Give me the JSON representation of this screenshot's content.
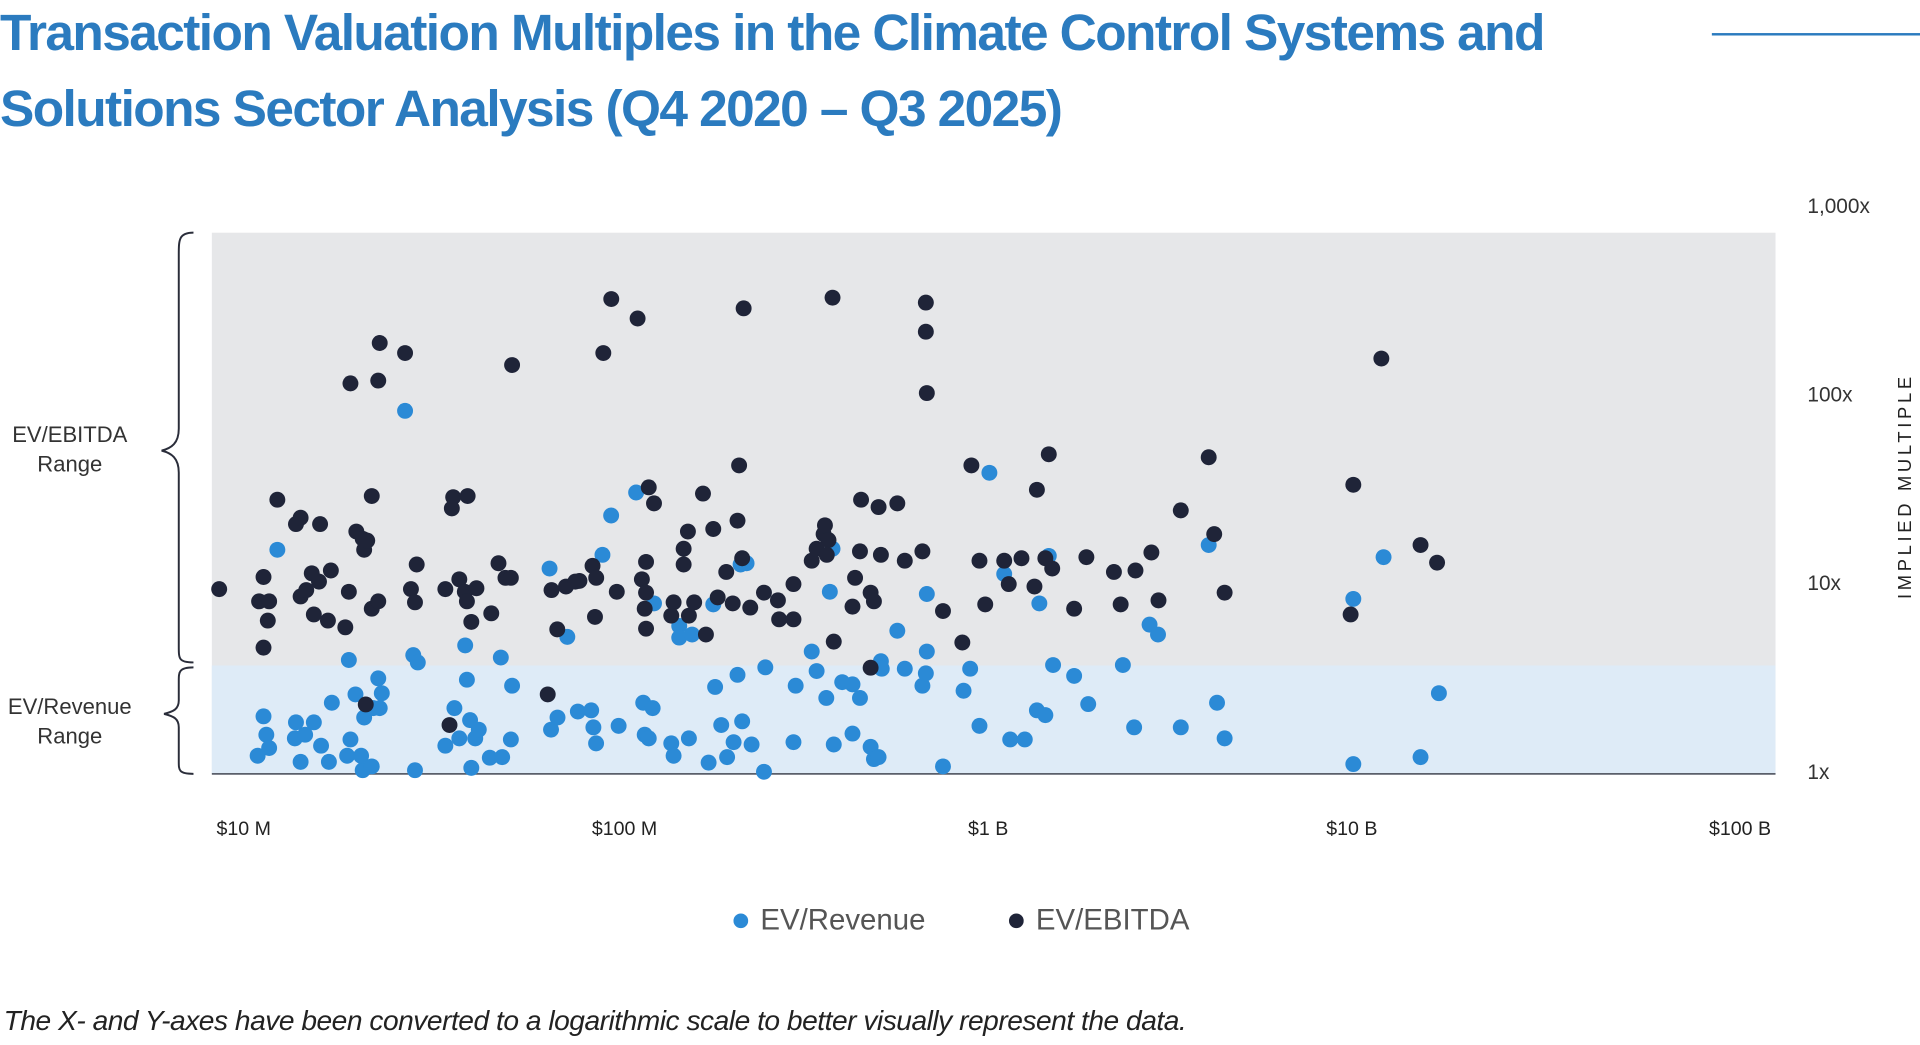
{
  "title": "Transaction Valuation Multiples in the Climate Control Systems and Solutions Sector Analysis (Q4 2020 – Q3 2025)",
  "footnote": "The X- and Y-axes have been converted to a logarithmic scale to better visually represent the data.",
  "range_labels": {
    "ebitda": [
      "EV/EBITDA",
      "Range"
    ],
    "revenue": [
      "EV/Revenue",
      "Range"
    ]
  },
  "colors": {
    "title": "#2b7bbf",
    "ev_revenue": "#2b8ad6",
    "ev_ebitda": "#1f2438",
    "plot_bg": "#e6e7e9",
    "revenue_band": "#deebf7"
  },
  "chart_data": {
    "type": "scatter",
    "title": "Transaction Valuation Multiples in the Climate Control Systems and Solutions Sector Analysis (Q4 2020 – Q3 2025)",
    "xlabel": "",
    "ylabel": "IMPLIED MULTIPLE",
    "x_scale": "log",
    "y_scale": "log",
    "x_unit": "$ M",
    "x_ticks": [
      10,
      100,
      1000,
      10000,
      100000
    ],
    "x_tick_labels": [
      "$10 M",
      "$100 M",
      "$1 B",
      "$10 B",
      "$100 B"
    ],
    "y_ticks": [
      1,
      10,
      100,
      1000
    ],
    "y_tick_labels": [
      "1x",
      "10x",
      "100x",
      "1,000x"
    ],
    "ylim": [
      1,
      730
    ],
    "y_axis_side": "right",
    "grid": false,
    "legend": "bottom-center",
    "bands": [
      {
        "label": "EV/EBITDA Range",
        "from": 3.7,
        "to": 730
      },
      {
        "label": "EV/Revenue Range",
        "from": 1,
        "to": 3.7
      }
    ],
    "series": [
      {
        "name": "EV/Revenue",
        "color": "#2b8ad6",
        "points": [
          [
            12.3,
            15.2
          ],
          [
            27,
            83
          ],
          [
            11.3,
            1.99
          ],
          [
            11.5,
            1.59
          ],
          [
            11.7,
            1.35
          ],
          [
            10.9,
            1.23
          ],
          [
            14.2,
            1.14
          ],
          [
            13.8,
            1.85
          ],
          [
            13.7,
            1.52
          ],
          [
            14.6,
            1.59
          ],
          [
            15.4,
            1.85
          ],
          [
            16.1,
            1.39
          ],
          [
            16.9,
            1.14
          ],
          [
            17.2,
            2.35
          ],
          [
            19.1,
            3.96
          ],
          [
            19.3,
            1.5
          ],
          [
            18.9,
            1.23
          ],
          [
            19.9,
            2.6
          ],
          [
            21,
            1.96
          ],
          [
            20.8,
            1.03
          ],
          [
            20.6,
            1.23
          ],
          [
            22,
            1.08
          ],
          [
            22.2,
            2.2
          ],
          [
            22.9,
            3.16
          ],
          [
            23.4,
            2.64
          ],
          [
            23.1,
            2.2
          ],
          [
            28.4,
            4.2
          ],
          [
            29.2,
            3.84
          ],
          [
            28.7,
            1.03
          ],
          [
            34.6,
            1.39
          ],
          [
            36.6,
            2.2
          ],
          [
            37.7,
            1.52
          ],
          [
            39.5,
            3.11
          ],
          [
            39.1,
            4.73
          ],
          [
            40.3,
            1.9
          ],
          [
            40.6,
            1.06
          ],
          [
            41.6,
            1.52
          ],
          [
            42.5,
            1.69
          ],
          [
            45.5,
            1.2
          ],
          [
            49.1,
            1.21
          ],
          [
            48.7,
            4.08
          ],
          [
            51.8,
            1.5
          ],
          [
            52.2,
            2.89
          ],
          [
            66.3,
            1.69
          ],
          [
            69,
            1.96
          ],
          [
            65.7,
            12.1
          ],
          [
            73.3,
            5.25
          ],
          [
            78.2,
            2.11
          ],
          [
            84.9,
            2.14
          ],
          [
            86.1,
            1.74
          ],
          [
            87.5,
            1.43
          ],
          [
            91,
            14.3
          ],
          [
            96,
            23.1
          ],
          [
            100.5,
            1.77
          ],
          [
            112,
            30.6
          ],
          [
            117,
            2.35
          ],
          [
            124,
            2.2
          ],
          [
            118,
            1.59
          ],
          [
            121,
            1.52
          ],
          [
            125,
            7.9
          ],
          [
            139,
            1.43
          ],
          [
            141,
            1.23
          ],
          [
            146,
            6
          ],
          [
            146,
            5.2
          ],
          [
            155,
            1.52
          ],
          [
            158,
            5.4
          ],
          [
            175,
            1.13
          ],
          [
            180,
            7.8
          ],
          [
            182,
            2.85
          ],
          [
            189,
            1.79
          ],
          [
            196,
            1.21
          ],
          [
            204,
            1.45
          ],
          [
            209,
            3.3
          ],
          [
            215,
            1.87
          ],
          [
            228,
            1.41
          ],
          [
            213,
            12.7
          ],
          [
            221,
            12.9
          ],
          [
            246,
            1.01
          ],
          [
            248,
            3.62
          ],
          [
            295,
            1.45
          ],
          [
            299,
            2.89
          ],
          [
            330,
            4.39
          ],
          [
            340,
            3.46
          ],
          [
            361,
            2.49
          ],
          [
            369,
            9.1
          ],
          [
            375,
            15.4
          ],
          [
            378,
            1.41
          ],
          [
            398,
            3.02
          ],
          [
            424,
            1.61
          ],
          [
            424,
            2.94
          ],
          [
            444,
            2.49
          ],
          [
            474,
            1.37
          ],
          [
            484,
            1.18
          ],
          [
            498,
            1.21
          ],
          [
            505,
            3.9
          ],
          [
            508,
            3.56
          ],
          [
            559,
            5.66
          ],
          [
            585,
            3.56
          ],
          [
            652,
            2.89
          ],
          [
            670,
            4.39
          ],
          [
            670,
            8.86
          ],
          [
            740,
            1.08
          ],
          [
            666,
            3.36
          ],
          [
            840,
            2.72
          ],
          [
            875,
            3.56
          ],
          [
            927,
            1.77
          ],
          [
            985,
            38.9
          ],
          [
            1079,
            11.3
          ],
          [
            1120,
            1.5
          ],
          [
            1225,
            1.5
          ],
          [
            1320,
            2.14
          ],
          [
            1390,
            2.02
          ],
          [
            1340,
            7.9
          ],
          [
            1420,
            14.1
          ],
          [
            1458,
            3.72
          ],
          [
            1660,
            3.26
          ],
          [
            1810,
            2.31
          ],
          [
            2240,
            3.72
          ],
          [
            2400,
            1.74
          ],
          [
            2640,
            6.1
          ],
          [
            2780,
            5.4
          ],
          [
            3200,
            1.74
          ],
          [
            3800,
            16.1
          ],
          [
            4000,
            2.35
          ],
          [
            4190,
            1.52
          ],
          [
            9250,
            1.11
          ],
          [
            9250,
            8.35
          ],
          [
            11150,
            13.9
          ],
          [
            14000,
            1.21
          ],
          [
            15670,
            2.64
          ]
        ]
      },
      {
        "name": "EV/EBITDA",
        "color": "#1f2438",
        "points": [
          [
            8.6,
            9.4
          ],
          [
            12.3,
            28
          ],
          [
            11.3,
            10.9
          ],
          [
            11,
            8.1
          ],
          [
            11.7,
            8.1
          ],
          [
            11.6,
            6.4
          ],
          [
            11.3,
            4.6
          ],
          [
            13.8,
            20.8
          ],
          [
            14.2,
            22.5
          ],
          [
            16,
            20.8
          ],
          [
            14.2,
            8.6
          ],
          [
            14.7,
            9.3
          ],
          [
            15.2,
            11.4
          ],
          [
            15.9,
            10.3
          ],
          [
            17.1,
            11.8
          ],
          [
            15.4,
            6.9
          ],
          [
            16.8,
            6.4
          ],
          [
            18.7,
            5.9
          ],
          [
            19.1,
            9.1
          ],
          [
            19.3,
            116
          ],
          [
            22.9,
            120
          ],
          [
            23.1,
            190
          ],
          [
            27,
            168
          ],
          [
            20,
            19
          ],
          [
            20.8,
            17.4
          ],
          [
            21,
            15.2
          ],
          [
            21.4,
            17
          ],
          [
            22,
            29.3
          ],
          [
            22,
            7.4
          ],
          [
            22.9,
            8.1
          ],
          [
            21.2,
            2.3
          ],
          [
            29,
            12.7
          ],
          [
            28,
            9.4
          ],
          [
            28.7,
            8
          ],
          [
            36.3,
            28.9
          ],
          [
            39.7,
            29.3
          ],
          [
            36,
            25.2
          ],
          [
            34.6,
            9.4
          ],
          [
            37.7,
            10.6
          ],
          [
            39,
            9.1
          ],
          [
            41.9,
            9.5
          ],
          [
            40.6,
            6.3
          ],
          [
            39.5,
            8.1
          ],
          [
            45.9,
            7
          ],
          [
            48,
            12.9
          ],
          [
            50.1,
            10.8
          ],
          [
            51.8,
            10.8
          ],
          [
            52.2,
            145
          ],
          [
            35.5,
            1.79
          ],
          [
            65,
            2.6
          ],
          [
            68.9,
            5.75
          ],
          [
            66.5,
            9.3
          ],
          [
            72.7,
            9.7
          ],
          [
            77,
            10.3
          ],
          [
            79,
            10.4
          ],
          [
            85.6,
            12.5
          ],
          [
            87.6,
            10.8
          ],
          [
            86.9,
            6.7
          ],
          [
            91.5,
            168
          ],
          [
            96.1,
            325
          ],
          [
            113,
            256
          ],
          [
            99.4,
            9.1
          ],
          [
            116,
            10.6
          ],
          [
            119,
            9
          ],
          [
            118,
            7.4
          ],
          [
            119,
            5.8
          ],
          [
            119,
            13.1
          ],
          [
            121,
            32.6
          ],
          [
            125,
            26.8
          ],
          [
            139,
            6.8
          ],
          [
            141,
            8
          ],
          [
            155,
            6.8
          ],
          [
            160,
            8
          ],
          [
            150,
            15.4
          ],
          [
            150,
            12.7
          ],
          [
            154,
            19
          ],
          [
            169,
            30.2
          ],
          [
            180,
            19.6
          ],
          [
            172,
            5.4
          ],
          [
            185,
            8.5
          ],
          [
            195,
            11.6
          ],
          [
            203,
            7.9
          ],
          [
            209,
            21.7
          ],
          [
            211,
            42.6
          ],
          [
            215,
            13.7
          ],
          [
            217,
            290
          ],
          [
            226,
            7.5
          ],
          [
            246,
            9
          ],
          [
            268,
            8.2
          ],
          [
            270,
            6.5
          ],
          [
            295,
            6.5
          ],
          [
            295,
            10
          ],
          [
            330,
            13.3
          ],
          [
            340,
            15.4
          ],
          [
            355,
            18.4
          ],
          [
            358,
            20.5
          ],
          [
            366,
            17.1
          ],
          [
            362,
            14.3
          ],
          [
            375,
            330
          ],
          [
            378,
            4.95
          ],
          [
            424,
            7.6
          ],
          [
            431,
            10.8
          ],
          [
            444,
            14.9
          ],
          [
            447,
            28
          ],
          [
            474,
            3.6
          ],
          [
            474,
            9
          ],
          [
            484,
            8.1
          ],
          [
            498,
            25.6
          ],
          [
            505,
            14.3
          ],
          [
            559,
            26.8
          ],
          [
            585,
            13.3
          ],
          [
            652,
            14.9
          ],
          [
            666,
            311
          ],
          [
            666,
            218
          ],
          [
            670,
            103
          ],
          [
            740,
            7.2
          ],
          [
            834,
            4.9
          ],
          [
            882,
            42.6
          ],
          [
            927,
            13.3
          ],
          [
            960,
            7.8
          ],
          [
            1079,
            13.3
          ],
          [
            1110,
            10
          ],
          [
            1200,
            13.7
          ],
          [
            1320,
            31.6
          ],
          [
            1300,
            9.7
          ],
          [
            1390,
            13.7
          ],
          [
            1420,
            48.8
          ],
          [
            1450,
            12.1
          ],
          [
            1660,
            7.4
          ],
          [
            1790,
            13.9
          ],
          [
            2120,
            11.6
          ],
          [
            2420,
            11.8
          ],
          [
            2210,
            7.8
          ],
          [
            2670,
            14.7
          ],
          [
            2790,
            8.2
          ],
          [
            3200,
            24.6
          ],
          [
            3800,
            47.1
          ],
          [
            3930,
            18.4
          ],
          [
            4190,
            9
          ],
          [
            9250,
            33.6
          ],
          [
            9100,
            6.9
          ],
          [
            11000,
            157
          ],
          [
            14000,
            16.1
          ],
          [
            15500,
            13
          ]
        ]
      }
    ]
  }
}
